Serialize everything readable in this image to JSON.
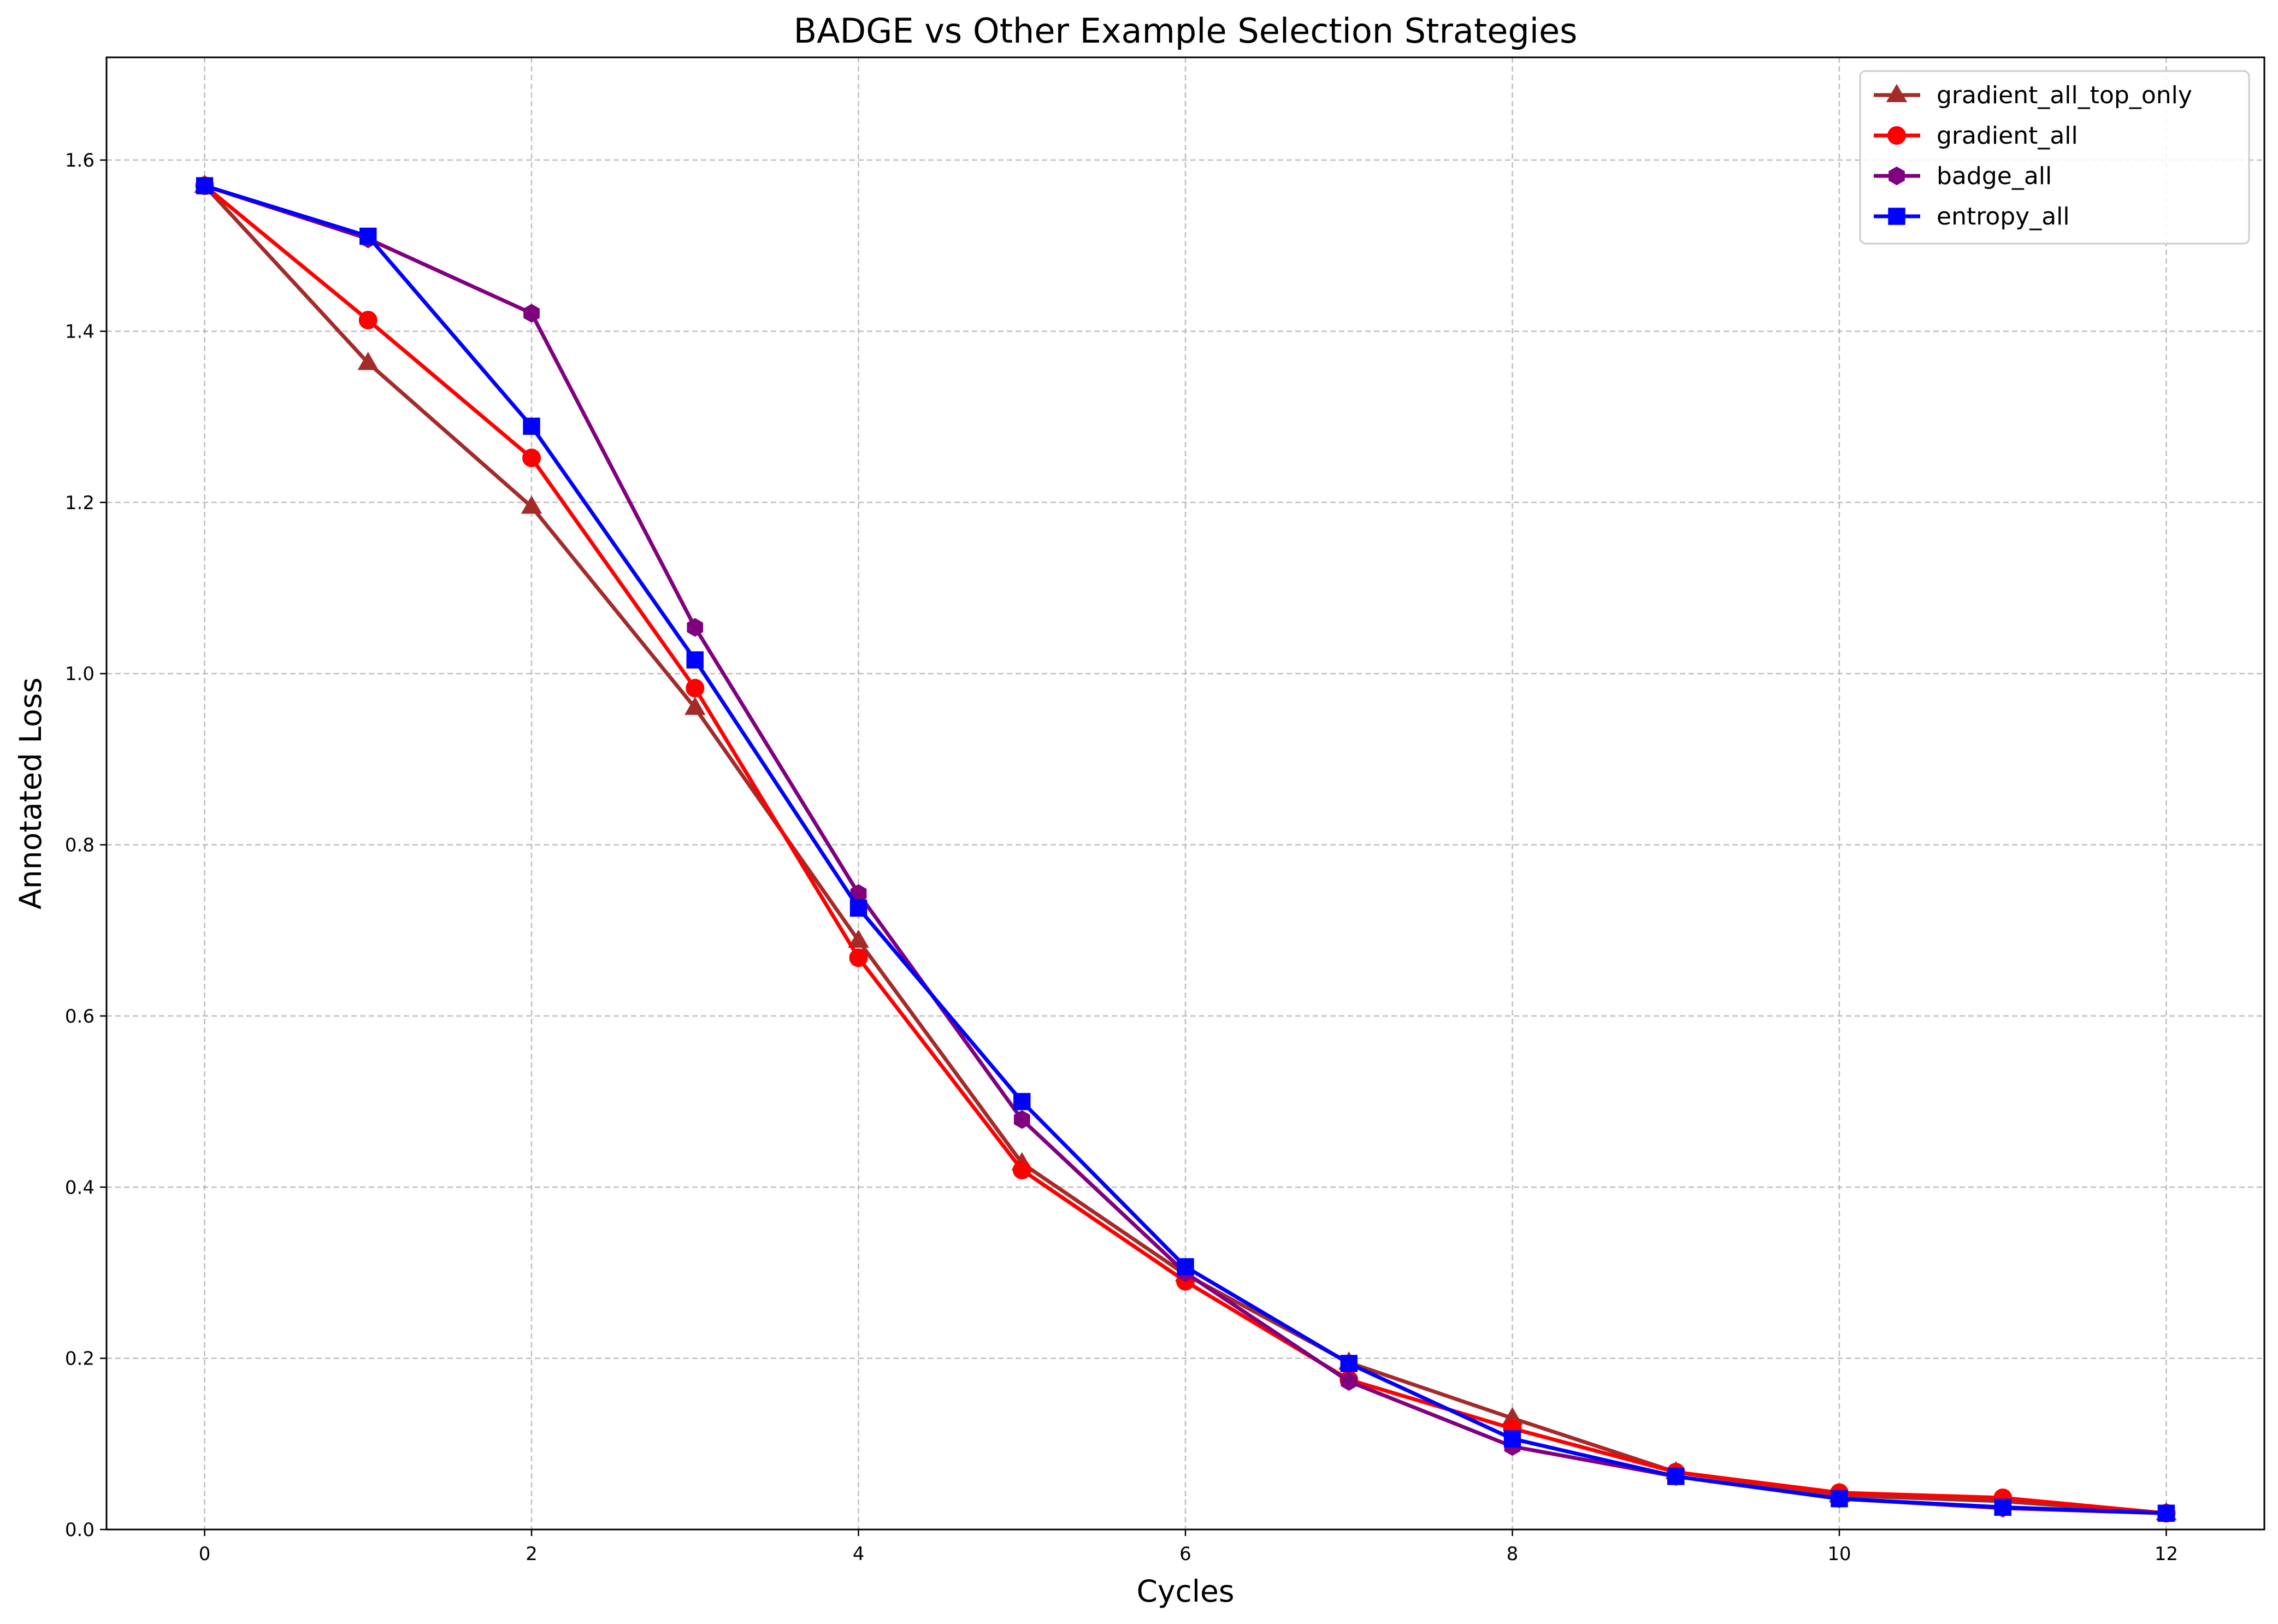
{
  "chart_data": {
    "type": "line",
    "title": "BADGE vs Other Example Selection Strategies",
    "xlabel": "Cycles",
    "ylabel": "Annotated Loss",
    "xlim": [
      -0.6,
      12.6
    ],
    "ylim": [
      0,
      1.72
    ],
    "xticks": [
      0,
      2,
      4,
      6,
      8,
      10,
      12
    ],
    "yticks": [
      0.0,
      0.2,
      0.4,
      0.6,
      0.8,
      1.0,
      1.2,
      1.4,
      1.6
    ],
    "xtick_labels": [
      "0",
      "2",
      "4",
      "6",
      "8",
      "10",
      "12"
    ],
    "ytick_labels": [
      "0.0",
      "0.2",
      "0.4",
      "0.6",
      "0.8",
      "1.0",
      "1.2",
      "1.4",
      "1.6"
    ],
    "grid": true,
    "legend_position": "top-right",
    "x": [
      0,
      1,
      2,
      3,
      4,
      5,
      6,
      7,
      8,
      9,
      10,
      11,
      12
    ],
    "series": [
      {
        "name": "gradient_all_top_only",
        "color": "#a52a2a",
        "marker": "triangle",
        "values": [
          1.57,
          1.363,
          1.195,
          0.96,
          0.688,
          0.428,
          0.298,
          0.195,
          0.13,
          0.067,
          0.04,
          0.033,
          0.019
        ]
      },
      {
        "name": "gradient_all",
        "color": "#ff0000",
        "marker": "circle",
        "values": [
          1.57,
          1.413,
          1.252,
          0.983,
          0.668,
          0.42,
          0.29,
          0.175,
          0.118,
          0.067,
          0.043,
          0.037,
          0.019
        ]
      },
      {
        "name": "badge_all",
        "color": "#800080",
        "marker": "hexagon",
        "values": [
          1.57,
          1.508,
          1.421,
          1.054,
          0.743,
          0.479,
          0.3,
          0.173,
          0.097,
          0.062,
          0.036,
          0.025,
          0.019
        ]
      },
      {
        "name": "entropy_all",
        "color": "#0000ff",
        "marker": "square",
        "values": [
          1.57,
          1.511,
          1.289,
          1.016,
          0.726,
          0.5,
          0.307,
          0.194,
          0.106,
          0.062,
          0.036,
          0.026,
          0.019
        ]
      }
    ]
  }
}
